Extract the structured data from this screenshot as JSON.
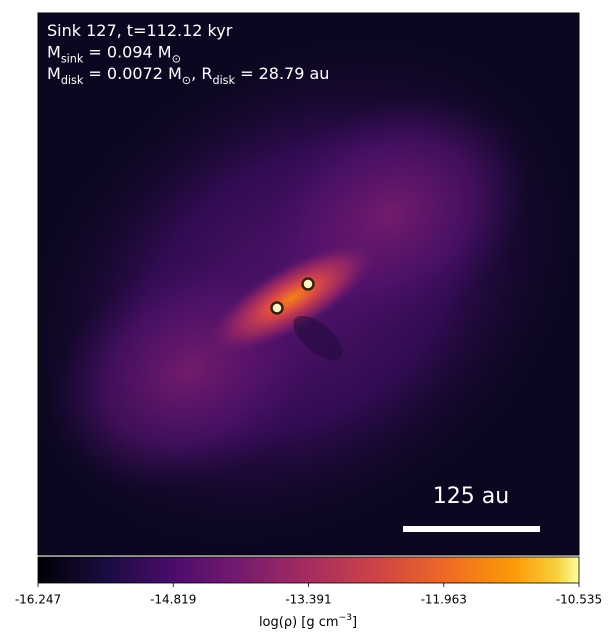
{
  "chart_data": {
    "type": "heatmap",
    "annotation_lines": [
      [
        {
          "text": "Sink 127, t=112.12 kyr"
        }
      ],
      [
        {
          "text": "M"
        },
        {
          "sub": "sink"
        },
        {
          "text": " = 0.094 M"
        },
        {
          "sub": "⊙"
        }
      ],
      [
        {
          "text": "M"
        },
        {
          "sub": "disk"
        },
        {
          "text": " = 0.0072 M"
        },
        {
          "sub": "⊙"
        },
        {
          "text": ", R"
        },
        {
          "sub": "disk"
        },
        {
          "text": " = 28.79 au"
        }
      ]
    ],
    "scale_bar_label": "125 au",
    "colorbar": {
      "colormap": "inferno",
      "clim": [
        -16.247,
        -10.535
      ],
      "ticks": [
        -16.247,
        -14.819,
        -13.391,
        -11.963,
        -10.535
      ],
      "label": [
        {
          "text": "log("
        },
        {
          "text": "ρ"
        },
        {
          "text": ") [g cm"
        },
        {
          "sup": "−3"
        },
        {
          "text": "]"
        }
      ]
    }
  }
}
